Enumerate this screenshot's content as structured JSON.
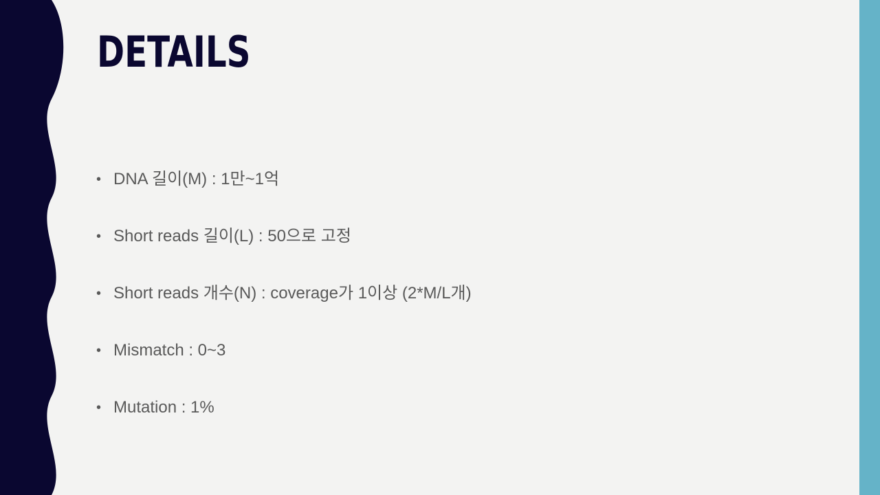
{
  "slide": {
    "title": "DETAILS",
    "bullets": [
      "DNA 길이(M) : 1만~1억",
      "Short reads 길이(L) : 50으로 고정",
      "Short reads 개수(N) : coverage가 1이상 (2*M/L개)",
      "Mismatch : 0~3",
      "Mutation : 1%"
    ]
  },
  "colors": {
    "background": "#f3f3f2",
    "left_band": "#0a0730",
    "right_bar": "#65b3c8",
    "title": "#0a0730",
    "body_text": "#595959"
  }
}
